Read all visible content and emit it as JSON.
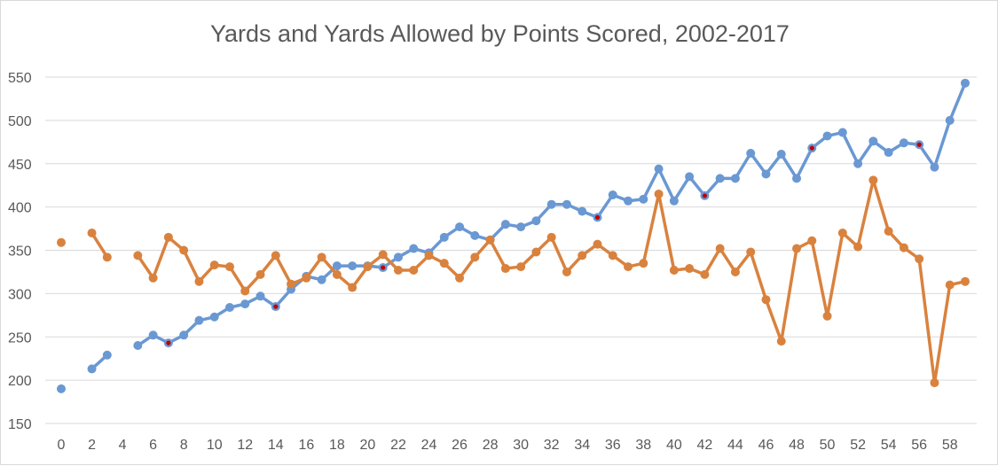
{
  "chart_data": {
    "type": "line",
    "title": "Yards and Yards Allowed by Points Scored, 2002-2017",
    "xlabel": "",
    "ylabel": "",
    "xlim": [
      0,
      59
    ],
    "ylim": [
      150,
      550
    ],
    "y_ticks": [
      150,
      200,
      250,
      300,
      350,
      400,
      450,
      500,
      550
    ],
    "x_ticks": [
      0,
      2,
      4,
      6,
      8,
      10,
      12,
      14,
      16,
      18,
      20,
      22,
      24,
      26,
      28,
      30,
      32,
      34,
      36,
      38,
      40,
      42,
      44,
      46,
      48,
      50,
      52,
      54,
      56,
      58
    ],
    "grid": "horizontal",
    "legend": "none",
    "x": [
      0,
      1,
      2,
      3,
      4,
      5,
      6,
      7,
      8,
      9,
      10,
      11,
      12,
      13,
      14,
      15,
      16,
      17,
      18,
      19,
      20,
      21,
      22,
      23,
      24,
      25,
      26,
      27,
      28,
      29,
      30,
      31,
      32,
      33,
      34,
      35,
      36,
      37,
      38,
      39,
      40,
      41,
      42,
      43,
      44,
      45,
      46,
      47,
      48,
      49,
      50,
      51,
      52,
      53,
      54,
      55,
      56,
      57,
      58,
      59
    ],
    "series": [
      {
        "color": "#6a98d3",
        "values": [
          190,
          null,
          213,
          229,
          null,
          240,
          252,
          243,
          252,
          269,
          273,
          284,
          288,
          297,
          285,
          305,
          320,
          316,
          332,
          332,
          332,
          330,
          342,
          352,
          347,
          365,
          377,
          367,
          362,
          380,
          377,
          384,
          403,
          403,
          395,
          388,
          414,
          407,
          409,
          444,
          407,
          435,
          413,
          433,
          433,
          462,
          438,
          461,
          433,
          468,
          482,
          486,
          450,
          476,
          463,
          474,
          472,
          446,
          500,
          543
        ],
        "highlight_points": [
          7,
          14,
          21,
          35,
          42,
          49,
          56
        ]
      },
      {
        "color": "#d9823e",
        "values": [
          359,
          null,
          370,
          342,
          null,
          344,
          318,
          365,
          350,
          314,
          333,
          331,
          303,
          322,
          344,
          311,
          318,
          342,
          322,
          307,
          331,
          345,
          327,
          327,
          344,
          335,
          318,
          342,
          362,
          329,
          331,
          348,
          365,
          325,
          344,
          357,
          344,
          331,
          335,
          415,
          327,
          329,
          322,
          352,
          325,
          348,
          293,
          245,
          352,
          361,
          274,
          370,
          354,
          431,
          372,
          353,
          340,
          197,
          310,
          314
        ]
      }
    ]
  }
}
